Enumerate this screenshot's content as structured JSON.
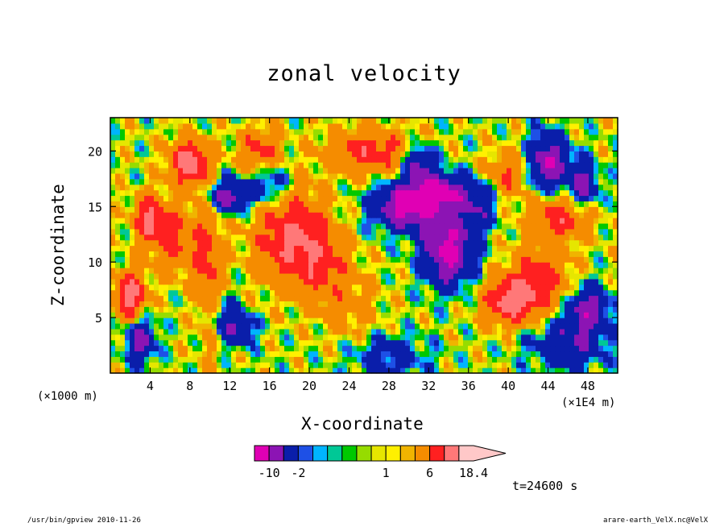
{
  "chart_data": {
    "type": "heatmap",
    "title": "zonal velocity",
    "xlabel": "X-coordinate",
    "ylabel": "Z-coordinate",
    "x_unit_note": "(×1000 m)",
    "x_scale_note": "(×1E4 m)",
    "xlim": [
      0,
      51
    ],
    "ylim": [
      0,
      23
    ],
    "xticks": [
      4,
      8,
      12,
      16,
      20,
      24,
      28,
      32,
      36,
      40,
      44,
      48
    ],
    "yticks": [
      5,
      10,
      15,
      20
    ],
    "colorbar": {
      "levels": [
        -14,
        -10,
        -6,
        -2,
        -1.5,
        -1,
        -0.5,
        0,
        0.5,
        1,
        1.5,
        2,
        6,
        10,
        14,
        18.4
      ],
      "colors": [
        "#e000b4",
        "#8c14b4",
        "#0a1eaa",
        "#1e50e6",
        "#00b4ff",
        "#00c896",
        "#00c800",
        "#96dc00",
        "#e6e600",
        "#fff000",
        "#f0b400",
        "#f58c00",
        "#ff2020",
        "#ff7878",
        "#ffc8c8"
      ],
      "tick_labels": [
        "-10",
        "-2",
        "1",
        "6",
        "18.4"
      ]
    },
    "grid": false
  },
  "time_label": "t=24600 s",
  "footer_left": "/usr/bin/gpview  2010-11-26",
  "footer_right": "arare-earth_VelX.nc@VelX"
}
